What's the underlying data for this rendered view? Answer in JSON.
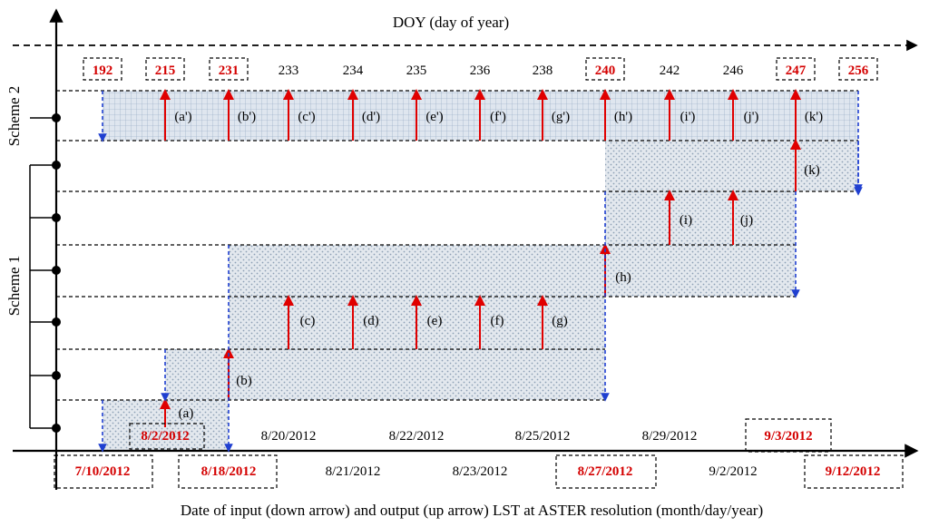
{
  "top_axis_title": "DOY (day of year)",
  "bottom_axis_title": "Date of input (down arrow) and output (up arrow) LST at ASTER resolution (month/day/year)",
  "scheme_labels": {
    "scheme2": "Scheme 2",
    "scheme1": "Scheme 1"
  },
  "doy_labels": [
    {
      "text": "192",
      "boxed": true
    },
    {
      "text": "215",
      "boxed": true
    },
    {
      "text": "231",
      "boxed": true
    },
    {
      "text": "233",
      "boxed": false
    },
    {
      "text": "234",
      "boxed": false
    },
    {
      "text": "235",
      "boxed": false
    },
    {
      "text": "236",
      "boxed": false
    },
    {
      "text": "238",
      "boxed": false
    },
    {
      "text": "240",
      "boxed": true
    },
    {
      "text": "242",
      "boxed": false
    },
    {
      "text": "246",
      "boxed": false
    },
    {
      "text": "247",
      "boxed": true
    },
    {
      "text": "256",
      "boxed": true
    }
  ],
  "date_labels": [
    {
      "text": "7/10/2012",
      "boxed": true
    },
    {
      "text": "8/2/2012",
      "boxed": true
    },
    {
      "text": "8/18/2012",
      "boxed": true
    },
    {
      "text": "8/20/2012",
      "boxed": false
    },
    {
      "text": "8/21/2012",
      "boxed": false
    },
    {
      "text": "8/22/2012",
      "boxed": false
    },
    {
      "text": "8/23/2012",
      "boxed": false
    },
    {
      "text": "8/25/2012",
      "boxed": false
    },
    {
      "text": "8/27/2012",
      "boxed": true
    },
    {
      "text": "8/29/2012",
      "boxed": false
    },
    {
      "text": "9/2/2012",
      "boxed": false
    },
    {
      "text": "9/3/2012",
      "boxed": true
    },
    {
      "text": "9/12/2012",
      "boxed": true
    }
  ],
  "scheme2_labels": [
    "(a')",
    "(b')",
    "(c')",
    "(d')",
    "(e')",
    "(f')",
    "(g')",
    "(h')",
    "(i')",
    "(j')",
    "(k')"
  ],
  "scheme1_labels": [
    "(a)",
    "(b)",
    "(c)",
    "(d)",
    "(e)",
    "(f)",
    "(g)",
    "(h)",
    "(i)",
    "(j)",
    "(k)"
  ],
  "colors": {
    "output_arrow": "#e00000",
    "input_arrow": "#1f3fd0",
    "region_fill": "#c9d3e0",
    "highlight_text": "#d40000"
  }
}
